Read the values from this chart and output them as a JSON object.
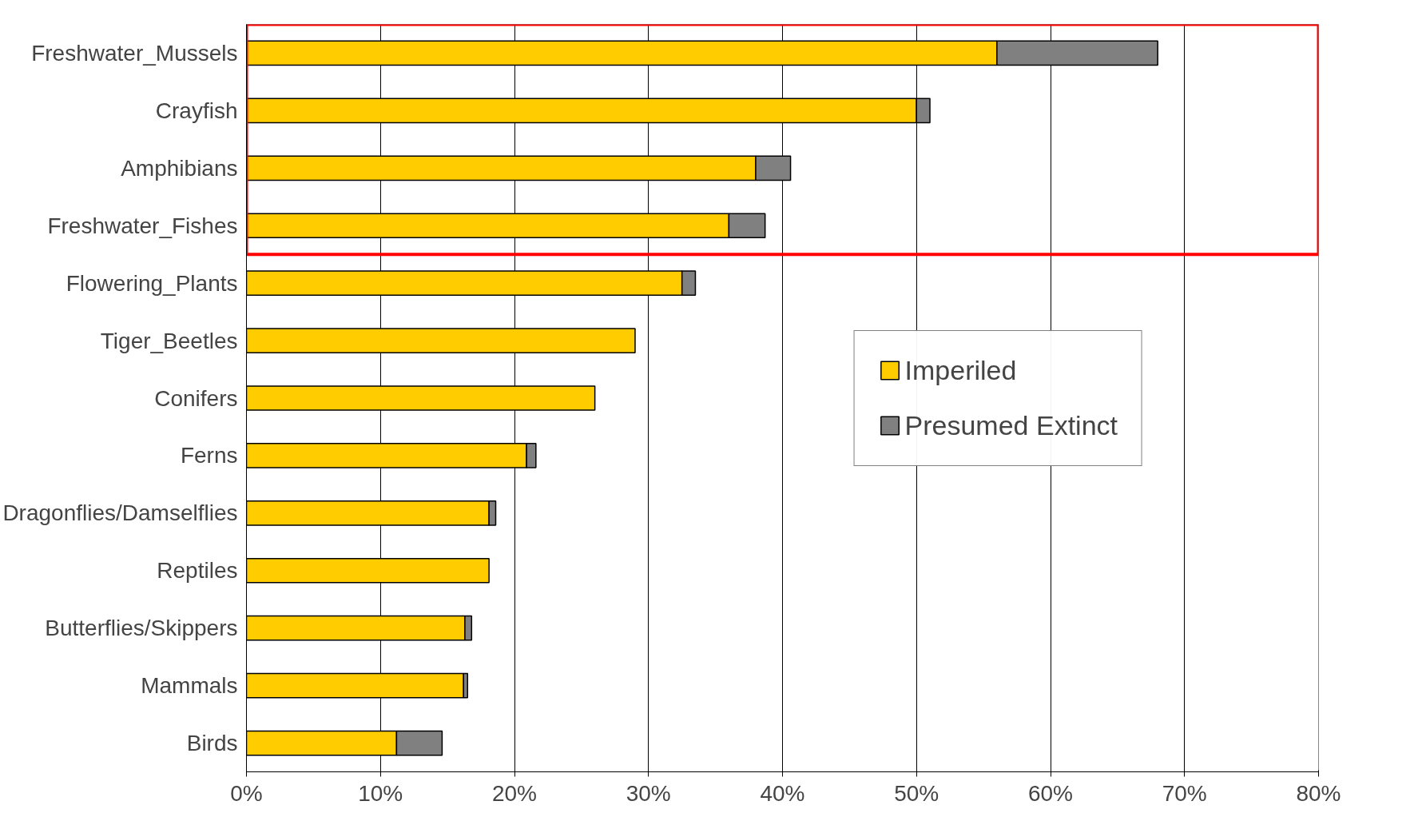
{
  "chart_data": {
    "type": "bar",
    "orientation": "horizontal",
    "stacked": true,
    "categories": [
      "Freshwater_Mussels",
      "Crayfish",
      "Amphibians",
      "Freshwater_Fishes",
      "Flowering_Plants",
      "Tiger_Beetles",
      "Conifers",
      "Ferns",
      "Dragonflies/Damselflies",
      "Reptiles",
      "Butterflies/Skippers",
      "Mammals",
      "Birds"
    ],
    "series": [
      {
        "name": "Imperiled",
        "color": "#ffcc00",
        "values": [
          56,
          50,
          38,
          36,
          32.5,
          29,
          26,
          20.9,
          18.1,
          18.1,
          16.3,
          16.2,
          11.2
        ]
      },
      {
        "name": "Presumed Extinct",
        "color": "#808080",
        "values": [
          12,
          1,
          2.6,
          2.7,
          1,
          0,
          0,
          0.7,
          0.5,
          0,
          0.5,
          0.3,
          3.4
        ]
      }
    ],
    "xlim": [
      0,
      80
    ],
    "xticks": [
      {
        "value": 0,
        "label": "0%"
      },
      {
        "value": 10,
        "label": "10%"
      },
      {
        "value": 20,
        "label": "20%"
      },
      {
        "value": 30,
        "label": "30%"
      },
      {
        "value": 40,
        "label": "40%"
      },
      {
        "value": 50,
        "label": "50%"
      },
      {
        "value": 60,
        "label": "60%"
      },
      {
        "value": 70,
        "label": "70%"
      },
      {
        "value": 80,
        "label": "80%"
      }
    ],
    "grid": "x",
    "legend": "right"
  }
}
